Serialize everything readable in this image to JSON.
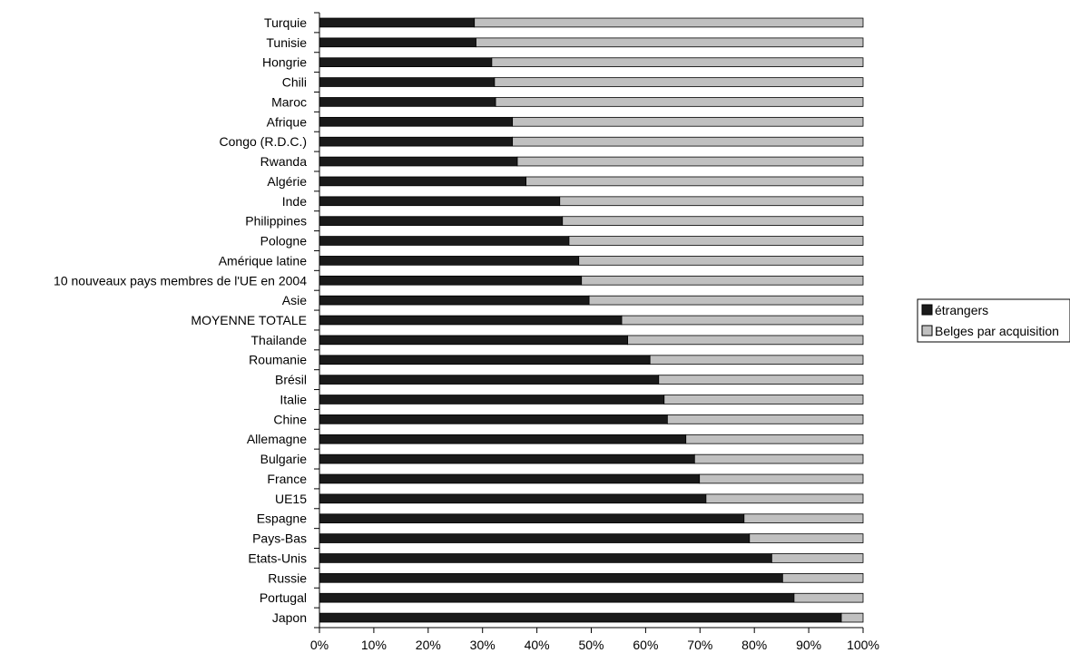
{
  "chart_data": {
    "type": "bar",
    "orientation": "horizontal",
    "stacked": "percent",
    "categories": [
      "Turquie",
      "Tunisie",
      "Hongrie",
      "Chili",
      "Maroc",
      "Afrique",
      "Congo (R.D.C.)",
      "Rwanda",
      "Algérie",
      "Inde",
      "Philippines",
      "Pologne",
      "Amérique latine",
      "10 nouveaux pays membres de l'UE en 2004",
      "Asie",
      "MOYENNE TOTALE",
      "Thailande",
      "Roumanie",
      "Brésil",
      "Italie",
      "Chine",
      "Allemagne",
      "Bulgarie",
      "France",
      "UE15",
      "Espagne",
      "Pays-Bas",
      "Etats-Unis",
      "Russie",
      "Portugal",
      "Japon"
    ],
    "series": [
      {
        "name": "étrangers",
        "color": "#1a1a1a",
        "values": [
          28.5,
          28.8,
          31.7,
          32.2,
          32.4,
          35.5,
          35.5,
          36.4,
          38,
          44.2,
          44.7,
          45.9,
          47.7,
          48.2,
          49.6,
          55.6,
          56.7,
          60.8,
          62.4,
          63.4,
          64,
          67.4,
          69,
          69.9,
          71.1,
          78.1,
          79.1,
          83.2,
          85.2,
          87.3,
          96
        ]
      },
      {
        "name": "Belges par acquisition",
        "color": "#c0c0c0",
        "values": [
          71.5,
          71.2,
          68.3,
          67.8,
          67.6,
          64.5,
          64.5,
          63.6,
          62,
          55.8,
          55.3,
          54.1,
          52.3,
          51.8,
          50.4,
          44.4,
          43.3,
          39.2,
          37.6,
          36.6,
          36,
          32.6,
          31,
          30.1,
          28.9,
          21.9,
          20.9,
          16.8,
          14.8,
          12.7,
          4
        ]
      }
    ],
    "x_ticks": [
      "0%",
      "10%",
      "20%",
      "30%",
      "40%",
      "50%",
      "60%",
      "70%",
      "80%",
      "90%",
      "100%"
    ],
    "xlim": [
      0,
      100
    ],
    "grid": false,
    "legend_position": "right"
  }
}
